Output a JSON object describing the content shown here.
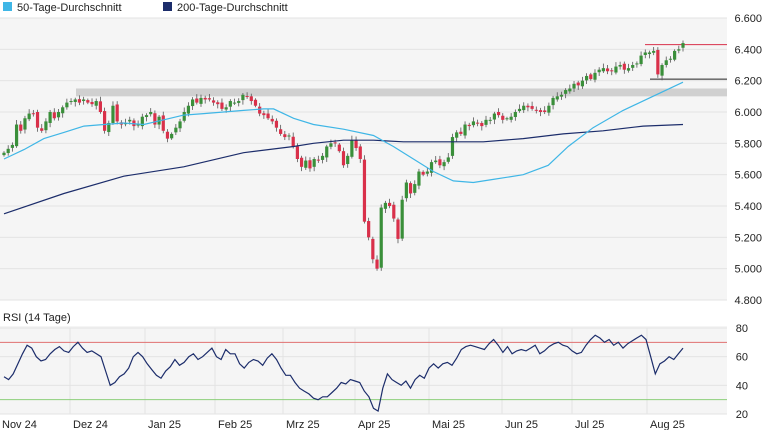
{
  "colors": {
    "ma50": "#3fb6e6",
    "ma200": "#1c2d6b",
    "candle_up": "#3a8f3a",
    "candle_down": "#d9304a",
    "rsi_line": "#1c2d6b",
    "rsi_upper": "#e07070",
    "rsi_lower": "#8ccf7a",
    "zone": "#d0d0d0",
    "grid": "#e3e3e3",
    "panel_bg": "#f5f5f5"
  },
  "legend": {
    "ma50_label": "50-Tage-Durchschnitt",
    "ma200_label": "200-Tage-Durchschnitt"
  },
  "rsi_title": "RSI (14 Tage)",
  "chart_data": [
    {
      "type": "candlestick",
      "title": "",
      "ylim": [
        4800,
        6600
      ],
      "yticks": [
        "6.600",
        "6.400",
        "6.200",
        "6.000",
        "5.800",
        "5.600",
        "5.400",
        "5.200",
        "5.000",
        "4.800"
      ],
      "ytick_values": [
        6600,
        6400,
        6200,
        6000,
        5800,
        5600,
        5400,
        5200,
        5000,
        4800
      ],
      "xticks": [
        "Nov 24",
        "Dez 24",
        "Jan 25",
        "Feb 25",
        "Mrz 25",
        "Apr 25",
        "Mai 25",
        "Jun 25",
        "Jul 25",
        "Aug 25"
      ],
      "resistance_zone": [
        6100,
        6150
      ],
      "reference_lines": [
        6430,
        6210
      ],
      "closes": [
        5740,
        5765,
        5790,
        5920,
        5880,
        5960,
        5990,
        5990,
        5900,
        5880,
        5940,
        6000,
        5960,
        6000,
        6030,
        6060,
        6070,
        6080,
        6060,
        6080,
        6060,
        6050,
        6070,
        6000,
        5880,
        5930,
        6040,
        5940,
        5920,
        5930,
        5950,
        5910,
        5920,
        5970,
        5980,
        6000,
        5920,
        5970,
        5880,
        5830,
        5860,
        5900,
        5940,
        6000,
        6040,
        6080,
        6060,
        6090,
        6080,
        6080,
        6060,
        6050,
        6020,
        6030,
        6070,
        6060,
        6070,
        6110,
        6100,
        6070,
        6040,
        5990,
        5980,
        5960,
        5940,
        5900,
        5860,
        5840,
        5850,
        5780,
        5700,
        5650,
        5690,
        5640,
        5700,
        5690,
        5720,
        5780,
        5800,
        5800,
        5750,
        5660,
        5720,
        5820,
        5770,
        5700,
        5300,
        5200,
        5060,
        5000,
        5390,
        5420,
        5400,
        5320,
        5190,
        5440,
        5550,
        5480,
        5540,
        5620,
        5600,
        5620,
        5680,
        5690,
        5660,
        5680,
        5710,
        5840,
        5870,
        5860,
        5920,
        5910,
        5940,
        5930,
        5910,
        5950,
        5950,
        5990,
        5980,
        5950,
        5960,
        5970,
        6000,
        6020,
        6040,
        6030,
        6020,
        6010,
        6000,
        6000,
        6040,
        6090,
        6100,
        6110,
        6140,
        6150,
        6180,
        6170,
        6200,
        6230,
        6210,
        6250,
        6270,
        6280,
        6260,
        6260,
        6290,
        6300,
        6270,
        6280,
        6300,
        6310,
        6360,
        6380,
        6380,
        6390,
        6240,
        6300,
        6330,
        6340,
        6390,
        6400,
        6440
      ],
      "ma50": [
        [
          0,
          5700
        ],
        [
          20,
          5760
        ],
        [
          40,
          5830
        ],
        [
          60,
          5870
        ],
        [
          80,
          5910
        ],
        [
          100,
          5920
        ],
        [
          120,
          5930
        ],
        [
          140,
          5920
        ],
        [
          160,
          5950
        ],
        [
          180,
          5980
        ],
        [
          200,
          5990
        ],
        [
          220,
          6000
        ],
        [
          240,
          6010
        ],
        [
          260,
          6020
        ],
        [
          270,
          6020
        ],
        [
          290,
          5960
        ],
        [
          310,
          5920
        ],
        [
          340,
          5890
        ],
        [
          370,
          5850
        ],
        [
          390,
          5780
        ],
        [
          410,
          5700
        ],
        [
          430,
          5620
        ],
        [
          450,
          5560
        ],
        [
          470,
          5550
        ],
        [
          490,
          5570
        ],
        [
          520,
          5600
        ],
        [
          545,
          5660
        ],
        [
          565,
          5780
        ],
        [
          590,
          5900
        ],
        [
          620,
          6010
        ],
        [
          650,
          6100
        ],
        [
          680,
          6190
        ]
      ],
      "ma200": [
        [
          0,
          5350
        ],
        [
          60,
          5480
        ],
        [
          120,
          5590
        ],
        [
          180,
          5650
        ],
        [
          240,
          5740
        ],
        [
          290,
          5780
        ],
        [
          310,
          5800
        ],
        [
          340,
          5820
        ],
        [
          370,
          5820
        ],
        [
          400,
          5810
        ],
        [
          440,
          5810
        ],
        [
          480,
          5810
        ],
        [
          520,
          5830
        ],
        [
          560,
          5860
        ],
        [
          600,
          5880
        ],
        [
          640,
          5910
        ],
        [
          680,
          5920
        ]
      ]
    },
    {
      "type": "line",
      "title": "RSI (14 Tage)",
      "ylim": [
        20,
        80
      ],
      "yticks": [
        "80",
        "60",
        "40",
        "20"
      ],
      "ytick_values": [
        80,
        60,
        40,
        20
      ],
      "upper_band": 70,
      "lower_band": 30,
      "values": [
        46,
        44,
        48,
        55,
        62,
        68,
        66,
        60,
        57,
        58,
        62,
        65,
        67,
        64,
        63,
        67,
        70,
        66,
        63,
        64,
        62,
        60,
        50,
        40,
        42,
        46,
        48,
        52,
        60,
        63,
        60,
        55,
        51,
        47,
        45,
        50,
        53,
        58,
        54,
        56,
        60,
        62,
        58,
        60,
        63,
        66,
        60,
        58,
        65,
        62,
        62,
        55,
        52,
        56,
        58,
        57,
        54,
        59,
        62,
        58,
        52,
        47,
        47,
        42,
        38,
        36,
        34,
        31,
        30,
        32,
        32,
        35,
        38,
        42,
        41,
        44,
        43,
        42,
        36,
        32,
        24,
        22,
        38,
        48,
        44,
        42,
        40,
        43,
        38,
        44,
        47,
        45,
        52,
        55,
        52,
        55,
        56,
        54,
        59,
        65,
        67,
        68,
        67,
        66,
        65,
        69,
        72,
        68,
        63,
        67,
        62,
        64,
        65,
        64,
        66,
        68,
        62,
        64,
        67,
        69,
        70,
        68,
        67,
        64,
        62,
        63,
        68,
        72,
        75,
        73,
        70,
        72,
        68,
        70,
        66,
        69,
        71,
        73,
        75,
        72,
        60,
        48,
        55,
        57,
        60,
        58,
        62,
        66
      ]
    }
  ]
}
